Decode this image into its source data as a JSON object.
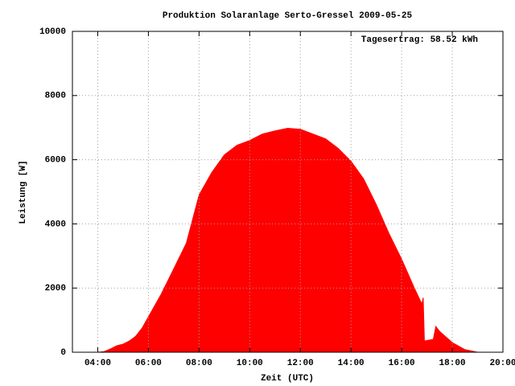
{
  "chart_data": {
    "type": "area",
    "title": "Produktion Solaranlage Serto-Gressel 2009-05-25",
    "annotation": "Tagesertrag: 58.52 kWh",
    "xlabel": "Zeit (UTC)",
    "ylabel": "Leistung [W]",
    "color": "#ff0000",
    "grid": true,
    "xlim": [
      3,
      20
    ],
    "xticks": [
      {
        "value": 4,
        "label": "04:00"
      },
      {
        "value": 6,
        "label": "06:00"
      },
      {
        "value": 8,
        "label": "08:00"
      },
      {
        "value": 10,
        "label": "10:00"
      },
      {
        "value": 12,
        "label": "12:00"
      },
      {
        "value": 14,
        "label": "14:00"
      },
      {
        "value": 16,
        "label": "16:00"
      },
      {
        "value": 18,
        "label": "18:00"
      },
      {
        "value": 20,
        "label": "20:00"
      }
    ],
    "ylim": [
      0,
      10000
    ],
    "yticks": [
      0,
      2000,
      4000,
      6000,
      8000,
      10000
    ],
    "x": [
      4,
      4.25,
      4.5,
      4.75,
      5,
      5.25,
      5.5,
      5.75,
      6,
      6.5,
      7,
      7.5,
      8,
      8.5,
      9,
      9.5,
      10,
      10.5,
      11,
      11.5,
      12,
      12.5,
      13,
      13.5,
      14,
      14.5,
      15,
      15.5,
      16,
      16.5,
      16.8,
      16.85,
      16.9,
      17.25,
      17.35,
      17.5,
      18,
      18.5,
      19
    ],
    "values": [
      0,
      20,
      100,
      200,
      250,
      350,
      500,
      750,
      1100,
      1800,
      2600,
      3400,
      4900,
      5600,
      6150,
      6450,
      6600,
      6800,
      6900,
      6980,
      6950,
      6800,
      6650,
      6350,
      5950,
      5400,
      4600,
      3700,
      2900,
      2000,
      1500,
      1700,
      350,
      400,
      800,
      650,
      300,
      80,
      0
    ]
  }
}
